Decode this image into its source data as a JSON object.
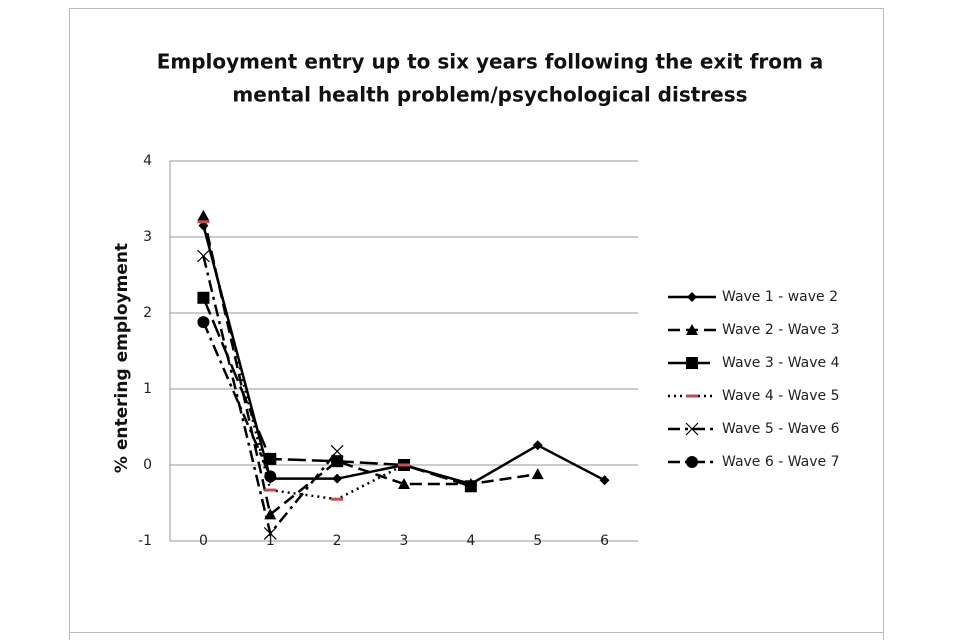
{
  "chart_data": {
    "type": "line",
    "title": [
      "Employment entry up to six years following the exit from a",
      "mental health problem/psychological distress"
    ],
    "y_label": "% entering employment",
    "categories": [
      "0",
      "1",
      "2",
      "3",
      "4",
      "5",
      "6"
    ],
    "ylim": [
      -1,
      4
    ],
    "yticks": [
      -1,
      0,
      1,
      2,
      3,
      4
    ],
    "grid": true,
    "legend": "right",
    "series": [
      {
        "name": "Wave 1 - wave 2",
        "color": "#000000",
        "dash": "solid",
        "marker": "diamond",
        "values": [
          3.15,
          -0.18,
          -0.18,
          0.0,
          -0.25,
          0.26,
          -0.2
        ]
      },
      {
        "name": "Wave 2 - Wave 3",
        "color": "#000000",
        "dash": "dash",
        "marker": "triangle",
        "values": [
          3.28,
          -0.65,
          0.05,
          -0.25,
          -0.25,
          -0.12,
          null
        ]
      },
      {
        "name": "Wave 3 - Wave 4",
        "color": "#000000",
        "dash": "longdash",
        "marker": "square",
        "values": [
          2.2,
          0.08,
          0.05,
          0.0,
          -0.28,
          null,
          null
        ]
      },
      {
        "name": "Wave 4 - Wave 5",
        "color": "#000000",
        "dash": "dot",
        "marker": "bar",
        "marker_color": "#c0504d",
        "values": [
          3.2,
          -0.33,
          -0.45,
          0.0,
          null,
          null,
          null
        ]
      },
      {
        "name": "Wave 5 - Wave 6",
        "color": "#000000",
        "dash": "dashdot",
        "marker": "x",
        "values": [
          2.75,
          -0.9,
          0.18,
          null,
          null,
          null,
          null
        ]
      },
      {
        "name": "Wave 6 - Wave 7",
        "color": "#000000",
        "dash": "dashdot",
        "marker": "circle",
        "values": [
          1.88,
          -0.15,
          null,
          null,
          null,
          null,
          null
        ]
      }
    ]
  }
}
